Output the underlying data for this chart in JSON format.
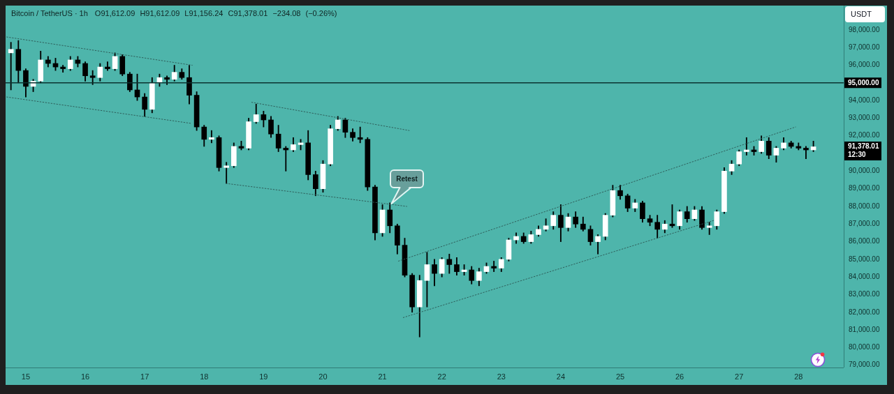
{
  "chart_data": {
    "type": "candlestick",
    "title": "Bitcoin / TetherUS · 1h",
    "subtitle": "O91,612.09 H91,612.09 L91,156.24 C91,378.01 −234.08 (−0.26%)",
    "ylabel": "USDT",
    "x": [
      14.75,
      14.875,
      15,
      15.125,
      15.25,
      15.375,
      15.5,
      15.625,
      15.75,
      15.875,
      16,
      16.125,
      16.25,
      16.375,
      16.5,
      16.625,
      16.75,
      16.875,
      17,
      17.125,
      17.25,
      17.375,
      17.5,
      17.625,
      17.75,
      17.875,
      18,
      18.125,
      18.25,
      18.375,
      18.5,
      18.625,
      18.75,
      18.875,
      19,
      19.125,
      19.25,
      19.375,
      19.5,
      19.625,
      19.75,
      19.875,
      20,
      20.125,
      20.25,
      20.375,
      20.5,
      20.625,
      20.75,
      20.875,
      21,
      21.125,
      21.25,
      21.375,
      21.5,
      21.625,
      21.75,
      21.875,
      22,
      22.125,
      22.25,
      22.375,
      22.5,
      22.625,
      22.75,
      22.875,
      23,
      23.125,
      23.25,
      23.375,
      23.5,
      23.625,
      23.75,
      23.875,
      24,
      24.125,
      24.25,
      24.375,
      24.5,
      24.625,
      24.75,
      24.875,
      25,
      25.125,
      25.25,
      25.375,
      25.5,
      25.625,
      25.75,
      25.875,
      26,
      26.125,
      26.25,
      26.375,
      26.5,
      26.625,
      26.75,
      26.875,
      27,
      27.125,
      27.25,
      27.375,
      27.5,
      27.625,
      27.75,
      27.875,
      28,
      28.125,
      28.25
    ],
    "ohlc": [
      [
        96700,
        97300,
        94600,
        96900
      ],
      [
        96900,
        97400,
        95000,
        95700
      ],
      [
        95700,
        95800,
        94200,
        94800
      ],
      [
        94800,
        95200,
        94500,
        95100
      ],
      [
        95100,
        96800,
        95000,
        96300
      ],
      [
        96300,
        96500,
        95900,
        96100
      ],
      [
        96100,
        96400,
        95700,
        95900
      ],
      [
        95900,
        96000,
        95600,
        95800
      ],
      [
        95800,
        96500,
        95700,
        96300
      ],
      [
        96300,
        96500,
        95900,
        96100
      ],
      [
        96100,
        96200,
        95100,
        95400
      ],
      [
        95400,
        95700,
        94900,
        95300
      ],
      [
        95300,
        96100,
        95100,
        95900
      ],
      [
        95900,
        96200,
        95700,
        95800
      ],
      [
        95800,
        96700,
        95700,
        96500
      ],
      [
        96500,
        96600,
        95400,
        95500
      ],
      [
        95500,
        95600,
        94500,
        94600
      ],
      [
        94600,
        95500,
        94000,
        94200
      ],
      [
        94200,
        94400,
        93100,
        93500
      ],
      [
        93500,
        95300,
        93300,
        95000
      ],
      [
        95000,
        95500,
        94800,
        95300
      ],
      [
        95300,
        95400,
        94900,
        95200
      ],
      [
        95200,
        96000,
        95100,
        95600
      ],
      [
        95600,
        95800,
        95200,
        95300
      ],
      [
        95300,
        96000,
        93800,
        94300
      ],
      [
        94300,
        94500,
        92300,
        92500
      ],
      [
        92500,
        92600,
        91400,
        91800
      ],
      [
        91800,
        92300,
        91600,
        91900
      ],
      [
        91900,
        92000,
        90000,
        90200
      ],
      [
        90200,
        90500,
        89300,
        90300
      ],
      [
        90300,
        91600,
        90200,
        91400
      ],
      [
        91400,
        91700,
        91200,
        91300
      ],
      [
        91300,
        93000,
        91200,
        92800
      ],
      [
        92800,
        93800,
        92700,
        93200
      ],
      [
        93200,
        93400,
        92500,
        92900
      ],
      [
        92900,
        93100,
        91900,
        92100
      ],
      [
        92100,
        92600,
        91100,
        91300
      ],
      [
        91300,
        91400,
        90000,
        91200
      ],
      [
        91200,
        91900,
        91100,
        91500
      ],
      [
        91500,
        91800,
        91200,
        91600
      ],
      [
        91600,
        92300,
        89500,
        89800
      ],
      [
        89800,
        90000,
        88600,
        89000
      ],
      [
        89000,
        90600,
        88800,
        90400
      ],
      [
        90400,
        92600,
        90300,
        92400
      ],
      [
        92400,
        93100,
        92300,
        92900
      ],
      [
        92900,
        93000,
        91900,
        92200
      ],
      [
        92200,
        92400,
        91700,
        91900
      ],
      [
        91900,
        92500,
        91600,
        91800
      ],
      [
        91800,
        91900,
        88900,
        89100
      ],
      [
        89100,
        89200,
        86100,
        86500
      ],
      [
        86500,
        88100,
        86300,
        87800
      ],
      [
        87800,
        88200,
        86500,
        86900
      ],
      [
        86900,
        87000,
        85300,
        85800
      ],
      [
        85800,
        86200,
        84000,
        84100
      ],
      [
        84100,
        84200,
        82000,
        82300
      ],
      [
        82300,
        84100,
        80600,
        83800
      ],
      [
        83800,
        85400,
        82300,
        84700
      ],
      [
        84700,
        85000,
        83500,
        84200
      ],
      [
        84200,
        85100,
        84000,
        85000
      ],
      [
        85000,
        85300,
        84200,
        84700
      ],
      [
        84700,
        85100,
        84100,
        84300
      ],
      [
        84300,
        84700,
        84100,
        84400
      ],
      [
        84400,
        84600,
        83600,
        83800
      ],
      [
        83800,
        84500,
        83500,
        84300
      ],
      [
        84300,
        84800,
        84200,
        84600
      ],
      [
        84600,
        84900,
        84300,
        84500
      ],
      [
        84500,
        85100,
        84300,
        85000
      ],
      [
        85000,
        86200,
        84900,
        86100
      ],
      [
        86100,
        86500,
        85900,
        86300
      ],
      [
        86300,
        86500,
        85900,
        86000
      ],
      [
        86000,
        86600,
        85900,
        86400
      ],
      [
        86400,
        86900,
        86300,
        86700
      ],
      [
        86700,
        87300,
        86600,
        86900
      ],
      [
        86900,
        87700,
        86700,
        87500
      ],
      [
        87500,
        88100,
        86000,
        86800
      ],
      [
        86800,
        87600,
        86600,
        87400
      ],
      [
        87400,
        87700,
        86800,
        87000
      ],
      [
        87000,
        87400,
        86600,
        86700
      ],
      [
        86700,
        86900,
        85800,
        86000
      ],
      [
        86000,
        86400,
        85300,
        86300
      ],
      [
        86300,
        87600,
        86100,
        87500
      ],
      [
        87500,
        89200,
        87400,
        88900
      ],
      [
        88900,
        89200,
        88400,
        88600
      ],
      [
        88600,
        88700,
        87700,
        87900
      ],
      [
        87900,
        88400,
        87700,
        88200
      ],
      [
        88200,
        88300,
        87100,
        87300
      ],
      [
        87300,
        87500,
        86900,
        87100
      ],
      [
        87100,
        87500,
        86200,
        86700
      ],
      [
        86700,
        87200,
        86500,
        87000
      ],
      [
        87000,
        88100,
        86800,
        86900
      ],
      [
        86900,
        87800,
        86700,
        87700
      ],
      [
        87700,
        88000,
        87100,
        87300
      ],
      [
        87300,
        88000,
        87200,
        87800
      ],
      [
        87800,
        88000,
        86700,
        86800
      ],
      [
        86800,
        87100,
        86400,
        86900
      ],
      [
        86900,
        87800,
        86700,
        87700
      ],
      [
        87700,
        90200,
        87600,
        90000
      ],
      [
        90000,
        90600,
        89800,
        90400
      ],
      [
        90400,
        91200,
        90300,
        91100
      ],
      [
        91100,
        91900,
        90900,
        91200
      ],
      [
        91200,
        91400,
        90900,
        91100
      ],
      [
        91100,
        92000,
        91000,
        91700
      ],
      [
        91700,
        91900,
        90700,
        90900
      ],
      [
        90900,
        91400,
        90500,
        91300
      ],
      [
        91300,
        91900,
        91200,
        91600
      ],
      [
        91600,
        91700,
        91300,
        91400
      ],
      [
        91400,
        91600,
        91200,
        91300
      ],
      [
        91300,
        91400,
        90700,
        91200
      ],
      [
        91200,
        91700,
        91100,
        91378.01
      ]
    ],
    "colors": [
      "#ffffff",
      "#000000",
      "#000000",
      "#ffffff",
      "#ffffff",
      "#000000",
      "#000000",
      "#000000",
      "#ffffff",
      "#000000",
      "#000000",
      "#000000",
      "#ffffff",
      "#000000",
      "#ffffff",
      "#000000",
      "#000000",
      "#000000",
      "#000000",
      "#ffffff",
      "#ffffff",
      "#000000",
      "#ffffff",
      "#000000",
      "#000000",
      "#000000",
      "#000000",
      "#ffffff",
      "#000000",
      "#ffffff",
      "#ffffff",
      "#000000",
      "#ffffff",
      "#ffffff",
      "#000000",
      "#000000",
      "#000000",
      "#000000",
      "#ffffff",
      "#ffffff",
      "#000000",
      "#000000",
      "#ffffff",
      "#ffffff",
      "#ffffff",
      "#000000",
      "#000000",
      "#000000",
      "#000000",
      "#000000",
      "#ffffff",
      "#000000",
      "#000000",
      "#000000",
      "#000000",
      "#ffffff",
      "#ffffff",
      "#000000",
      "#ffffff",
      "#000000",
      "#000000",
      "#ffffff",
      "#000000",
      "#ffffff",
      "#ffffff",
      "#000000",
      "#ffffff",
      "#ffffff",
      "#ffffff",
      "#000000",
      "#ffffff",
      "#ffffff",
      "#ffffff",
      "#ffffff",
      "#000000",
      "#ffffff",
      "#000000",
      "#000000",
      "#000000",
      "#ffffff",
      "#ffffff",
      "#ffffff",
      "#000000",
      "#000000",
      "#ffffff",
      "#000000",
      "#000000",
      "#000000",
      "#ffffff",
      "#000000",
      "#ffffff",
      "#000000",
      "#ffffff",
      "#000000",
      "#ffffff",
      "#ffffff",
      "#ffffff",
      "#ffffff",
      "#ffffff",
      "#ffffff",
      "#000000",
      "#ffffff",
      "#000000",
      "#ffffff",
      "#ffffff",
      "#000000",
      "#000000",
      "#000000",
      "#ffffff"
    ],
    "color": "#000000",
    "series": [
      {
        "type": "line",
        "x": [
          14.68,
          17.8
        ],
        "values": [
          97600,
          96000
        ],
        "color": "#2e5e5a",
        "line_style": "dotted"
      },
      {
        "type": "line",
        "x": [
          14.68,
          17.79
        ],
        "values": [
          94200,
          92700
        ],
        "color": "#2e5e5a",
        "line_style": "dotted"
      },
      {
        "type": "line",
        "x": [
          18.8,
          21.45
        ],
        "values": [
          93900,
          92300
        ],
        "color": "#2e5e5a",
        "line_style": "dotted"
      },
      {
        "type": "line",
        "x": [
          18.37,
          21.41
        ],
        "values": [
          89300,
          88000
        ],
        "color": "#2e5e5a",
        "line_style": "dotted"
      },
      {
        "type": "line",
        "x": [
          21.27,
          27.95
        ],
        "values": [
          84900,
          92500
        ],
        "color": "#2e5e5a",
        "line_style": "dotted"
      },
      {
        "type": "line",
        "x": [
          21.35,
          26.57
        ],
        "values": [
          81700,
          87200
        ],
        "color": "#2e5e5a",
        "line_style": "dotted"
      }
    ],
    "xlim": [
      14.66,
      28.76
    ],
    "xticks": [
      15,
      16,
      17,
      18,
      19,
      20,
      21,
      22,
      23,
      24,
      25,
      26,
      27,
      28
    ],
    "ylim": [
      78870,
      99380
    ],
    "yticks": [
      {
        "value": 79000,
        "label": "79,000.00"
      },
      {
        "value": 80000,
        "label": "80,000.00"
      },
      {
        "value": 81000,
        "label": "81,000.00"
      },
      {
        "value": 82000,
        "label": "82,000.00"
      },
      {
        "value": 83000,
        "label": "83,000.00"
      },
      {
        "value": 84000,
        "label": "84,000.00"
      },
      {
        "value": 85000,
        "label": "85,000.00"
      },
      {
        "value": 86000,
        "label": "86,000.00"
      },
      {
        "value": 87000,
        "label": "87,000.00"
      },
      {
        "value": 88000,
        "label": "88,000.00"
      },
      {
        "value": 89000,
        "label": "89,000.00"
      },
      {
        "value": 90000,
        "label": "90,000.00"
      },
      {
        "value": 92000,
        "label": "92,000.00"
      },
      {
        "value": 93000,
        "label": "93,000.00"
      },
      {
        "value": 94000,
        "label": "94,000.00"
      },
      {
        "value": 96000,
        "label": "96,000.00"
      },
      {
        "value": 97000,
        "label": "97,000.00"
      },
      {
        "value": 98000,
        "label": "98,000.00"
      }
    ],
    "ref_lines": [
      {
        "axis": "y",
        "value": 95000,
        "label": "95,000.00",
        "color": "#0b3330"
      }
    ],
    "annotations": [
      "Retest",
      "91,378.01\n12:30"
    ]
  }
}
